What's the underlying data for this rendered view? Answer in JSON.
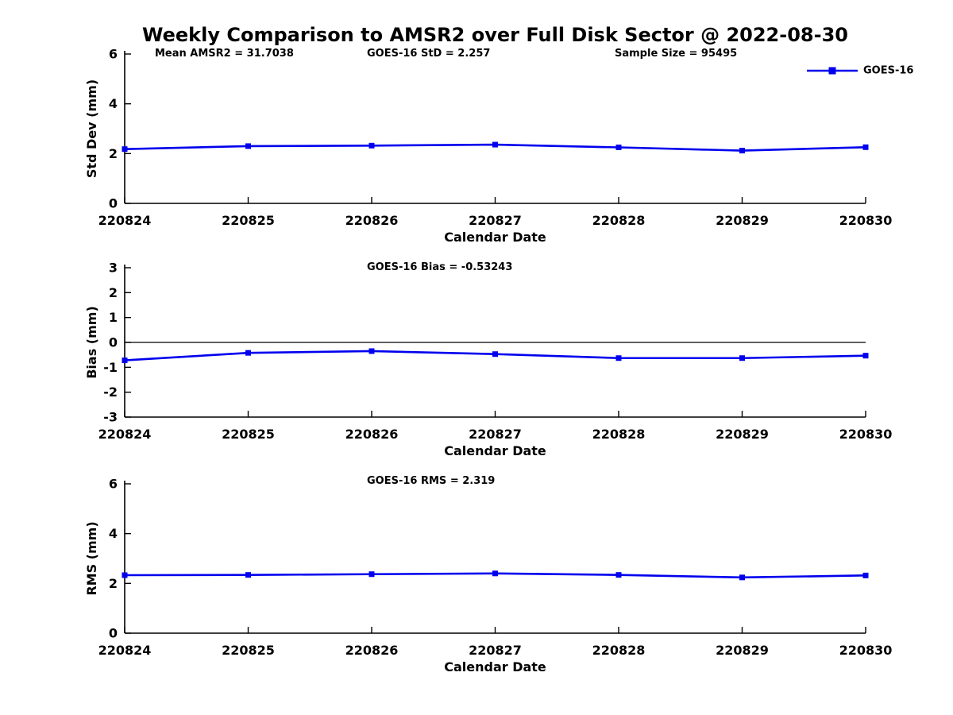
{
  "title": "Weekly Comparison to AMSR2 over Full Disk Sector @ 2022-08-30",
  "colors": {
    "series": "#0000ee",
    "axis": "#000000",
    "zero_line": "#000000",
    "text": "#000000",
    "background": "#ffffff"
  },
  "legend": {
    "label": "GOES-16",
    "position": "top-right",
    "marker": "filled-square"
  },
  "chart_data": [
    {
      "type": "line",
      "annotations": [
        "Mean AMSR2 = 31.7038",
        "GOES-16 StD = 2.257",
        "Sample Size = 95495"
      ],
      "categories": [
        "220824",
        "220825",
        "220826",
        "220827",
        "220828",
        "220829",
        "220830"
      ],
      "series": [
        {
          "name": "GOES-16",
          "values": [
            2.18,
            2.3,
            2.32,
            2.36,
            2.25,
            2.12,
            2.257
          ]
        }
      ],
      "xlabel": "Calendar Date",
      "ylabel": "Std Dev (mm)",
      "ylim": [
        0,
        6
      ],
      "yticks": [
        0,
        2,
        4,
        6
      ],
      "grid": false,
      "zero_line": false,
      "show_legend": true
    },
    {
      "type": "line",
      "annotations": [
        "GOES-16 Bias  = -0.53243"
      ],
      "categories": [
        "220824",
        "220825",
        "220826",
        "220827",
        "220828",
        "220829",
        "220830"
      ],
      "series": [
        {
          "name": "GOES-16",
          "values": [
            -0.72,
            -0.42,
            -0.35,
            -0.47,
            -0.63,
            -0.63,
            -0.53243
          ]
        }
      ],
      "xlabel": "Calendar Date",
      "ylabel": "Bias (mm)",
      "ylim": [
        -3,
        3
      ],
      "yticks": [
        -3,
        -2,
        -1,
        0,
        1,
        2,
        3
      ],
      "grid": false,
      "zero_line": true,
      "show_legend": false
    },
    {
      "type": "line",
      "annotations": [
        "GOES-16 RMS = 2.319"
      ],
      "categories": [
        "220824",
        "220825",
        "220826",
        "220827",
        "220828",
        "220829",
        "220830"
      ],
      "series": [
        {
          "name": "GOES-16",
          "values": [
            2.33,
            2.34,
            2.37,
            2.4,
            2.34,
            2.24,
            2.319
          ]
        }
      ],
      "xlabel": "Calendar Date",
      "ylabel": "RMS (mm)",
      "ylim": [
        0,
        6
      ],
      "yticks": [
        0,
        2,
        4,
        6
      ],
      "grid": false,
      "zero_line": false,
      "show_legend": false
    }
  ]
}
